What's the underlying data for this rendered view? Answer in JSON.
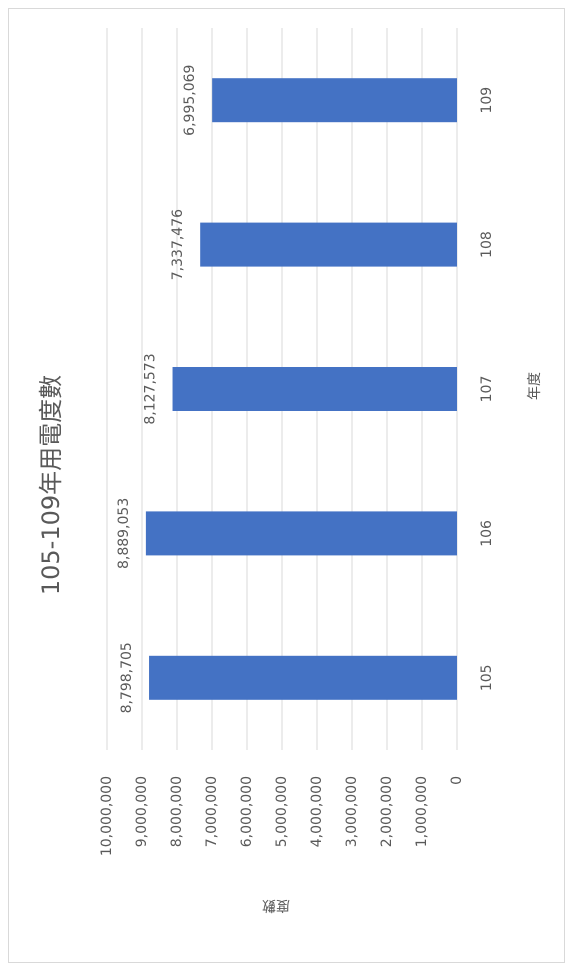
{
  "chart_data": {
    "type": "bar",
    "orientation": "rotated",
    "title": "105-109年用電度數",
    "xlabel": "年度",
    "ylabel": "度數",
    "categories": [
      "105",
      "106",
      "107",
      "108",
      "109"
    ],
    "values": [
      8798705,
      8889053,
      8127573,
      7337476,
      6995069
    ],
    "value_labels": [
      "8,798,705",
      "8,889,053",
      "8,127,573",
      "7,337,476",
      "6,995,069"
    ],
    "color": "#4472c4",
    "ylim": [
      0,
      10000000
    ],
    "yticks": [
      0,
      {
        "value": 1000000,
        "label": "1,000,000"
      },
      {
        "value": 2000000,
        "label": "2,000,000"
      },
      {
        "value": 3000000,
        "label": "3,000,000"
      },
      {
        "value": 4000000,
        "label": "4,000,000"
      },
      {
        "value": 5000000,
        "label": "5,000,000"
      },
      {
        "value": 6000000,
        "label": "6,000,000"
      },
      {
        "value": 7000000,
        "label": "7,000,000"
      },
      {
        "value": 8000000,
        "label": "8,000,000"
      },
      {
        "value": 9000000,
        "label": "9,000,000"
      },
      {
        "value": 10000000,
        "label": "10,000,000"
      }
    ],
    "grid": true
  }
}
